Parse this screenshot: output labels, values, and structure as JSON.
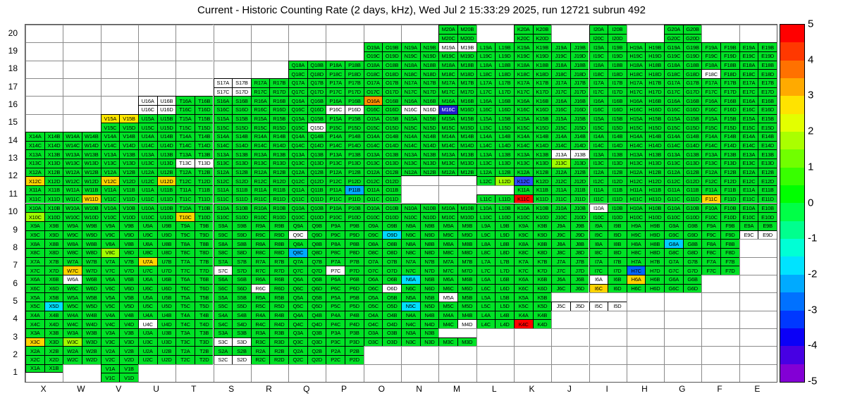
{
  "chart_data": {
    "type": "heatmap",
    "title": "Current - Historic Counting Rate (2 days, kHz), Wed Jul  2 15:33:29 2025, run 12721 subrun 492",
    "units": "kHz",
    "value_range": [
      -5,
      5
    ],
    "legend_position": "right-colorbar",
    "columns": [
      "X",
      "W",
      "V",
      "U",
      "T",
      "S",
      "R",
      "Q",
      "P",
      "O",
      "N",
      "M",
      "L",
      "K",
      "J",
      "I",
      "H",
      "G",
      "F",
      "E"
    ],
    "row_order": [
      20,
      19,
      18,
      17,
      16,
      15,
      14,
      13,
      12,
      11,
      10,
      9,
      8,
      7,
      6,
      5,
      4,
      3,
      2,
      1
    ],
    "label_pattern": "{column}{row}{half}",
    "default_color": "#00e226",
    "colorbar": {
      "min": -5,
      "max": 5,
      "ticks": [
        5,
        4,
        3,
        2,
        1,
        0,
        -1,
        -2,
        -3,
        -4,
        -5
      ],
      "palette": [
        "#ff0000",
        "#ff3800",
        "#ff7100",
        "#ffaa00",
        "#ffe300",
        "#e3ff00",
        "#aaff00",
        "#71ff00",
        "#38ff00",
        "#00ff00",
        "#00ff47",
        "#00ff8e",
        "#00ffd5",
        "#00e3ff",
        "#00aaff",
        "#0071ff",
        "#0038ff",
        "#0b00f7",
        "#4700e3",
        "#8300d5"
      ]
    },
    "occupancy": {
      "20": {
        "AB": [
          "M",
          "K",
          "I",
          "G"
        ],
        "CD": [
          "M",
          "K",
          "I",
          "G"
        ]
      },
      "19": {
        "AB": [
          "O",
          "N",
          "M",
          "L",
          "K",
          "J",
          "I",
          "H",
          "G",
          "F",
          "E"
        ],
        "CD": [
          "O",
          "N",
          "M",
          "L",
          "K",
          "J",
          "I",
          "H",
          "G",
          "F",
          "E"
        ]
      },
      "18": {
        "AB": [
          "Q",
          "P",
          "O",
          "N",
          "M",
          "L",
          "K",
          "J",
          "I",
          "H",
          "G",
          "F",
          "E"
        ],
        "CD": [
          "Q",
          "P",
          "O",
          "N",
          "M",
          "L",
          "K",
          "J",
          "I",
          "H",
          "G",
          "F",
          "E"
        ]
      },
      "17": {
        "AB": [
          "S",
          "R",
          "Q",
          "P",
          "O",
          "N",
          "M",
          "L",
          "K",
          "J",
          "I",
          "H",
          "G",
          "F",
          "E"
        ],
        "CD": [
          "S",
          "R",
          "Q",
          "P",
          "O",
          "N",
          "M",
          "L",
          "K",
          "J",
          "I",
          "H",
          "G",
          "F",
          "E"
        ]
      },
      "16": {
        "AB": [
          "U",
          "T",
          "S",
          "R",
          "Q",
          "P",
          "O",
          "N",
          "M",
          "L",
          "K",
          "J",
          "I",
          "H",
          "G",
          "F",
          "E"
        ],
        "CD": [
          "U",
          "T",
          "S",
          "R",
          "Q",
          "P",
          "O",
          "N",
          "M",
          "L",
          "K",
          "J",
          "I",
          "H",
          "G",
          "F",
          "E"
        ]
      },
      "15": {
        "AB": [
          "V",
          "U",
          "T",
          "S",
          "R",
          "Q",
          "P",
          "O",
          "N",
          "M",
          "L",
          "K",
          "J",
          "I",
          "H",
          "G",
          "F",
          "E"
        ],
        "CD": [
          "V",
          "U",
          "T",
          "S",
          "R",
          "Q",
          "P",
          "O",
          "N",
          "M",
          "L",
          "K",
          "J",
          "I",
          "H",
          "G",
          "F",
          "E"
        ]
      },
      "14": {
        "AB": "ALL",
        "CD": "ALL"
      },
      "13": {
        "AB": "ALL",
        "CD": "ALL"
      },
      "12": {
        "AB": "ALL",
        "CD": [
          "X",
          "W",
          "V",
          "U",
          "T",
          "S",
          "R",
          "Q",
          "P",
          "O",
          "L",
          "K",
          "J",
          "I",
          "H",
          "G",
          "F",
          "E"
        ]
      },
      "11": {
        "AB": [
          "X",
          "W",
          "V",
          "U",
          "T",
          "S",
          "R",
          "Q",
          "P",
          "O",
          "K",
          "J",
          "I",
          "H",
          "G",
          "F",
          "E"
        ],
        "CD": [
          "X",
          "W",
          "V",
          "U",
          "T",
          "S",
          "R",
          "Q",
          "P",
          "O",
          "L",
          "K",
          "J",
          "I",
          "H",
          "G",
          "F",
          "E"
        ]
      },
      "10": {
        "AB": "ALL",
        "CD": "ALL"
      },
      "9": {
        "AB": "ALL",
        "CD": "ALL"
      },
      "8": {
        "AB": [
          "X",
          "W",
          "V",
          "U",
          "T",
          "S",
          "R",
          "Q",
          "P",
          "O",
          "N",
          "M",
          "L",
          "K",
          "J",
          "I",
          "H",
          "G",
          "F"
        ],
        "CD": [
          "X",
          "W",
          "V",
          "U",
          "T",
          "S",
          "R",
          "Q",
          "P",
          "O",
          "N",
          "M",
          "L",
          "K",
          "J",
          "I",
          "H",
          "G",
          "F"
        ]
      },
      "7": {
        "AB": [
          "X",
          "W",
          "V",
          "U",
          "T",
          "S",
          "R",
          "Q",
          "P",
          "O",
          "N",
          "M",
          "L",
          "K",
          "J",
          "I",
          "H",
          "G",
          "F"
        ],
        "CD": [
          "X",
          "W",
          "V",
          "U",
          "T",
          "S",
          "R",
          "Q",
          "P",
          "O",
          "N",
          "M",
          "L",
          "K",
          "J",
          "I",
          "H",
          "G",
          "F"
        ]
      },
      "6": {
        "AB": [
          "X",
          "W",
          "V",
          "U",
          "T",
          "S",
          "R",
          "Q",
          "P",
          "O",
          "N",
          "M",
          "L",
          "K",
          "J",
          "I",
          "H",
          "G"
        ],
        "CD": [
          "X",
          "W",
          "V",
          "U",
          "T",
          "S",
          "R",
          "Q",
          "P",
          "O",
          "N",
          "M",
          "L",
          "K",
          "J",
          "I",
          "H",
          "G"
        ]
      },
      "5": {
        "AB": [
          "X",
          "W",
          "V",
          "U",
          "T",
          "S",
          "R",
          "Q",
          "P",
          "O",
          "N",
          "M",
          "L",
          "K"
        ],
        "CD": [
          "X",
          "W",
          "V",
          "U",
          "T",
          "S",
          "R",
          "Q",
          "P",
          "O",
          "N",
          "M",
          "L",
          "K",
          "J",
          "I"
        ]
      },
      "4": {
        "AB": [
          "X",
          "W",
          "V",
          "U",
          "T",
          "S",
          "R",
          "Q",
          "P",
          "O",
          "N",
          "M",
          "L",
          "K"
        ],
        "CD": [
          "X",
          "W",
          "V",
          "U",
          "T",
          "S",
          "R",
          "Q",
          "P",
          "O",
          "N",
          "M",
          "L",
          "K"
        ]
      },
      "3": {
        "AB": [
          "X",
          "W",
          "V",
          "U",
          "T",
          "S",
          "R",
          "Q",
          "P",
          "O",
          "N"
        ],
        "CD": [
          "X",
          "W",
          "V",
          "U",
          "T",
          "S",
          "R",
          "Q",
          "P",
          "O",
          "N",
          "M"
        ]
      },
      "2": {
        "AB": [
          "X",
          "W",
          "V",
          "U",
          "T",
          "S",
          "R",
          "Q",
          "P"
        ],
        "CD": [
          "X",
          "W",
          "V",
          "U",
          "T",
          "S",
          "R",
          "Q",
          "P"
        ]
      },
      "1": {
        "AB": [
          "X",
          "V"
        ],
        "CD": [
          "V"
        ]
      }
    },
    "cell_colors": {
      "V15A": "#ffe800",
      "V15B": "#ffe800",
      "O16A": "#ff9100",
      "M16C": "#2020cc",
      "U16A": "#ffffff",
      "U16B": "#ffffff",
      "U16C": "#ffffff",
      "U16D": "#ffffff",
      "P16C": "#ffffff",
      "P16D": "#ffffff",
      "N16C": "#ffffff",
      "N16D": "#ffffff",
      "S17A": "#ffffff",
      "S17B": "#ffffff",
      "S17C": "#ffffff",
      "S17D": "#ffffff",
      "M19A": "#ffffff",
      "M19B": "#ffffff",
      "F18C": "#ffffff",
      "Q15D": "#ffffff",
      "T13C": "#ffffff",
      "T13D": "#ffffff",
      "J13A": "#ffffff",
      "J13B": "#ffffff",
      "J13C": "#9fff00",
      "X12C": "#ffd400",
      "V12C": "#ffd400",
      "U12D": "#ffd400",
      "L12D": "#9fff00",
      "K12C": "#2e4bff",
      "W11D": "#ffd400",
      "P11B": "#00aaff",
      "K11C": "#ff0000",
      "F11C": "#ffd400",
      "X10C": "#9fff00",
      "T10C": "#ffd400",
      "I10A": "#ffffff",
      "Q9C": "#ffffff",
      "O9D": "#00d9ff",
      "E9C": "#ffffff",
      "E9D": "#ffffff",
      "V8C": "#9fff00",
      "Q8C": "#00aaff",
      "G8A": "#00ccff",
      "U7A": "#ffd400",
      "W7C": "#ffd400",
      "S7C": "#ffffff",
      "P7C": "#ffffff",
      "H7C": "#0066ff",
      "W6A": "#ffffff",
      "N6A": "#00e0ff",
      "R6C": "#ffffff",
      "O6D": "#ffffff",
      "I6A": "#ffffff",
      "I6C": "#ffd400",
      "H6A": "#ffd400",
      "M5A": "#ffffff",
      "X5D": "#00e0ff",
      "N5C": "#00e0ff",
      "J5C": "#ffffff",
      "J5D": "#ffffff",
      "I5C": "#ffffff",
      "I5D": "#ffffff",
      "U4C": "#ffffff",
      "M4D": "#ffffff",
      "K4C": "#ff0000",
      "X3C": "#ffd400",
      "W3C": "#9fff00",
      "S3C": "#ffffff",
      "S3D": "#ffffff",
      "S2C": "#ffffff",
      "S2D": "#ffffff"
    }
  }
}
